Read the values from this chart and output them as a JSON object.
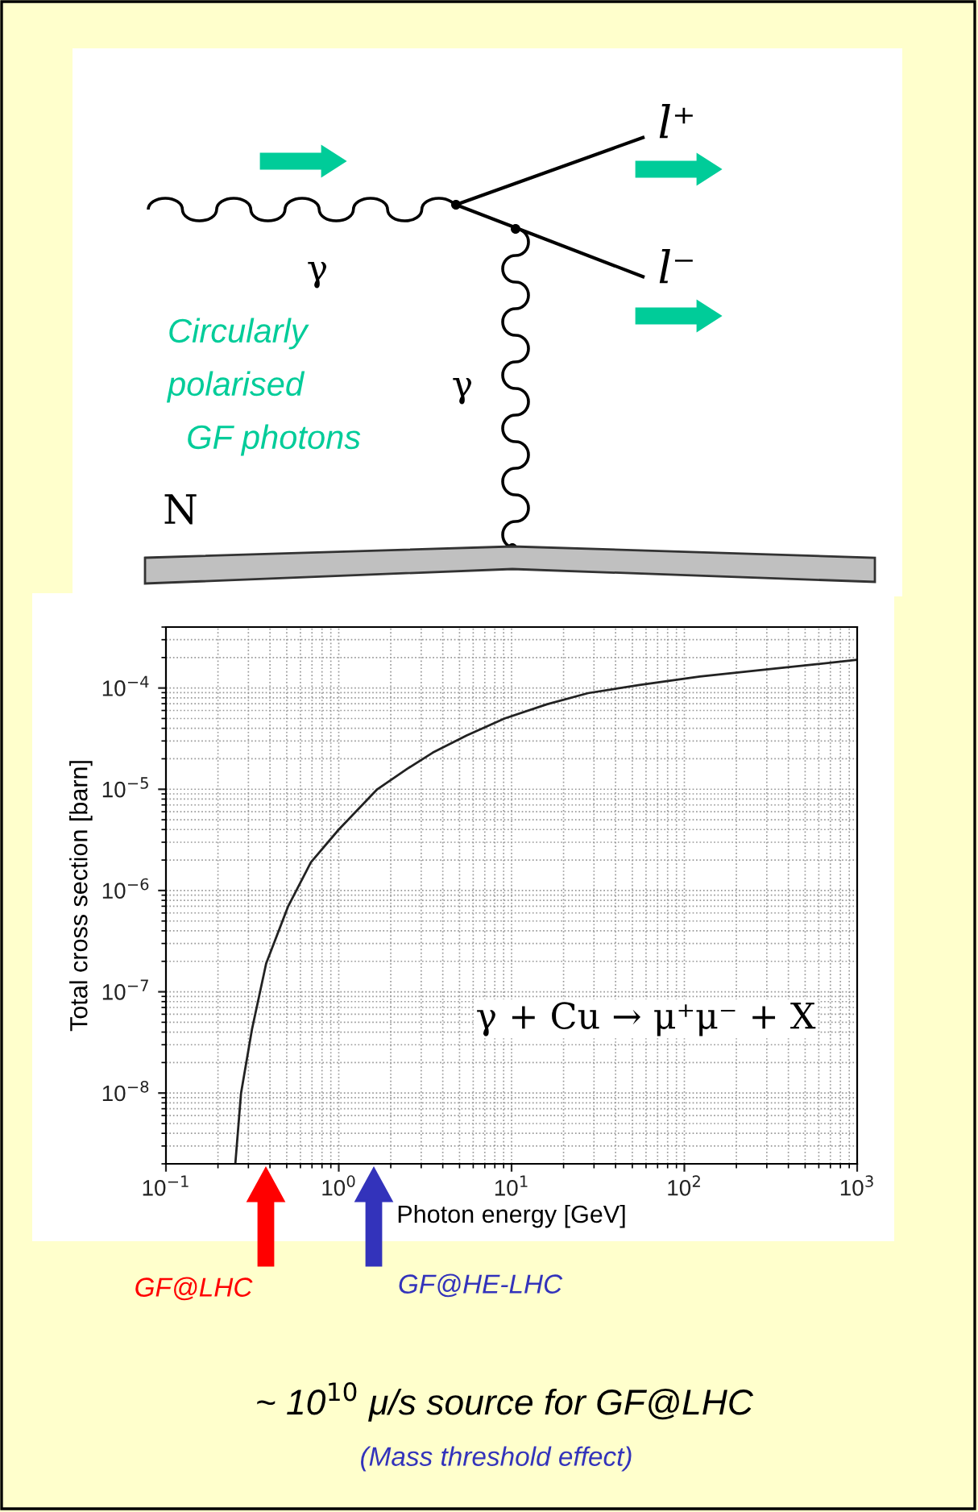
{
  "chart_data": {
    "type": "line",
    "xlabel": "Photon energy [GeV]",
    "ylabel": "Total cross section [barn]",
    "series": [
      {
        "color": "#222222",
        "x": [
          0.252,
          0.272,
          0.315,
          0.38,
          0.51,
          0.69,
          1.0,
          1.67,
          2.5,
          3.5,
          5.5,
          9.1,
          16,
          27.7,
          55,
          123,
          330,
          1000
        ],
        "values": [
          2e-09,
          1e-08,
          4.3e-08,
          1.9e-07,
          7e-07,
          1.9e-06,
          4e-06,
          1e-05,
          1.6e-05,
          2.3e-05,
          3.4e-05,
          5e-05,
          6.9e-05,
          8.9e-05,
          0.000107,
          0.00013,
          0.000155,
          0.00019
        ]
      }
    ],
    "log": "xy",
    "xlim": [
      0.1,
      1000
    ],
    "ylim": [
      2e-09,
      0.0004
    ],
    "xticks": [
      {
        "value": 0.1,
        "label": "10$^{−1}$"
      },
      {
        "value": 1,
        "label": "10$^{0}$"
      },
      {
        "value": 10,
        "label": "10$^{1}$"
      },
      {
        "value": 100,
        "label": "10$^{2}$"
      },
      {
        "value": 1000,
        "label": "10$^{3}$"
      }
    ],
    "yticks": [
      {
        "value": 1e-08,
        "label": "10$^{−8}$"
      },
      {
        "value": 1e-07,
        "label": "10$^{−7}$"
      },
      {
        "value": 1e-06,
        "label": "10$^{−6}$"
      },
      {
        "value": 1e-05,
        "label": "10$^{−5}$"
      },
      {
        "value": 0.0001,
        "label": "10$^{−4}$"
      }
    ],
    "grid": true,
    "marker": "none",
    "line_style": "solid",
    "annotations": [
      "γ + Cu → μ⁺μ⁻ + X",
      "GF@LHC",
      "GF@HE-LHC",
      "γ",
      "γ",
      "l⁺",
      "l⁻",
      "Circularly\npolarised\n  GF photons",
      "N",
      "~ 10$^{10}$ μ/s source for GF@LHC",
      "(Mass threshold effect)"
    ]
  }
}
